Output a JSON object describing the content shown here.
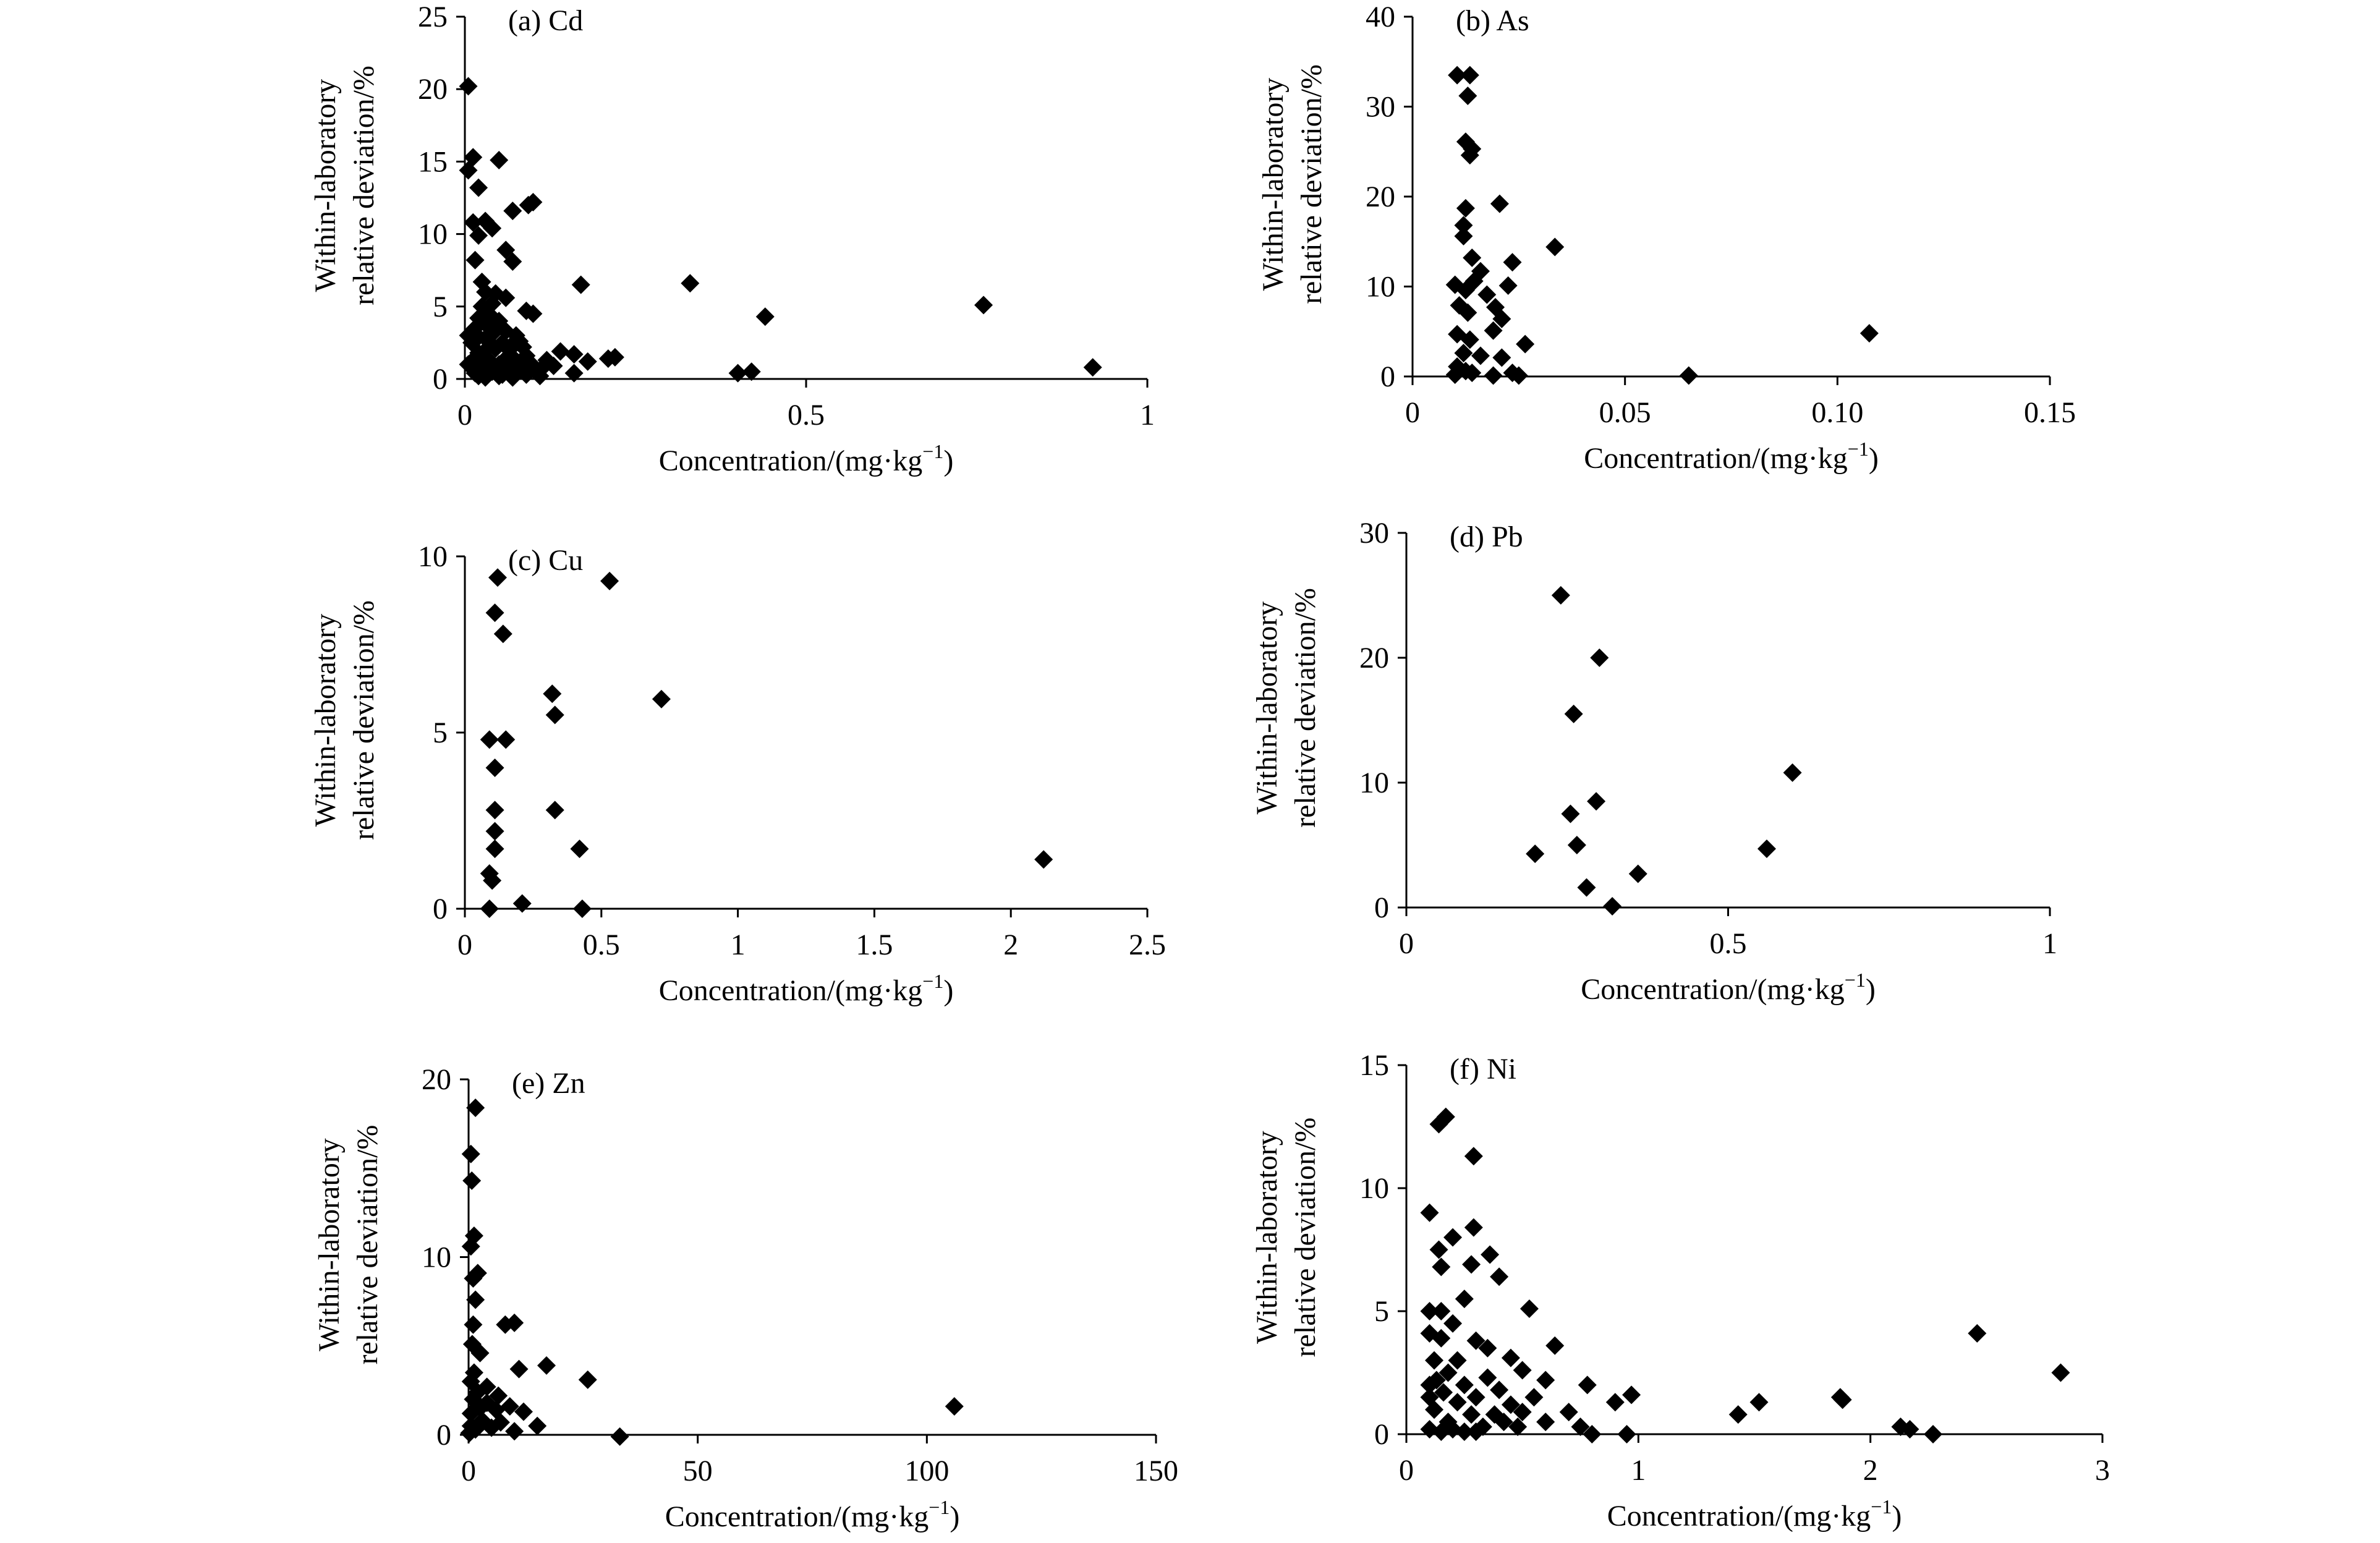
{
  "chart_data": [
    {
      "type": "scatter",
      "panel_label": "(a) Cd",
      "xlabel": "Concentration/(mg·kg",
      "xlabel_sup": "−1",
      "xlabel_close": ")",
      "ylabel_line1": "Within-laboratory",
      "ylabel_line2": "relative deviation/%",
      "xlim": [
        0,
        1
      ],
      "ylim": [
        0,
        25
      ],
      "xticks": [
        0,
        0.5,
        1
      ],
      "xtick_labels": [
        "0",
        "0.5",
        "1"
      ],
      "yticks": [
        0,
        5,
        10,
        15,
        20,
        25
      ],
      "ytick_labels": [
        "0",
        "5",
        "10",
        "15",
        "20",
        "25"
      ],
      "points": [
        [
          0.005,
          20.2
        ],
        [
          0.005,
          14.4
        ],
        [
          0.012,
          15.3
        ],
        [
          0.02,
          13.2
        ],
        [
          0.05,
          15.1
        ],
        [
          0.012,
          10.8
        ],
        [
          0.03,
          10.9
        ],
        [
          0.04,
          10.4
        ],
        [
          0.02,
          9.9
        ],
        [
          0.07,
          11.6
        ],
        [
          0.1,
          12.2
        ],
        [
          0.093,
          12.0
        ],
        [
          0.06,
          8.9
        ],
        [
          0.07,
          8.1
        ],
        [
          0.015,
          8.2
        ],
        [
          0.025,
          6.7
        ],
        [
          0.045,
          5.9
        ],
        [
          0.06,
          5.6
        ],
        [
          0.09,
          4.7
        ],
        [
          0.1,
          4.5
        ],
        [
          0.17,
          6.5
        ],
        [
          0.33,
          6.6
        ],
        [
          0.44,
          4.3
        ],
        [
          0.76,
          5.1
        ],
        [
          0.92,
          0.8
        ],
        [
          0.4,
          0.4
        ],
        [
          0.42,
          0.5
        ],
        [
          0.16,
          0.4
        ],
        [
          0.22,
          1.5
        ],
        [
          0.21,
          1.4
        ],
        [
          0.18,
          1.2
        ],
        [
          0.16,
          1.7
        ],
        [
          0.14,
          1.9
        ],
        [
          0.13,
          0.9
        ],
        [
          0.12,
          1.3
        ],
        [
          0.11,
          0.6
        ],
        [
          0.1,
          0.9
        ],
        [
          0.09,
          1.6
        ],
        [
          0.085,
          2.2
        ],
        [
          0.08,
          2.6
        ],
        [
          0.075,
          3.0
        ],
        [
          0.07,
          1.5
        ],
        [
          0.065,
          2.0
        ],
        [
          0.06,
          3.3
        ],
        [
          0.055,
          2.5
        ],
        [
          0.05,
          4.0
        ],
        [
          0.045,
          3.6
        ],
        [
          0.04,
          5.2
        ],
        [
          0.035,
          4.5
        ],
        [
          0.03,
          6.0
        ],
        [
          0.025,
          5.0
        ],
        [
          0.02,
          4.2
        ],
        [
          0.015,
          3.5
        ],
        [
          0.01,
          2.5
        ],
        [
          0.01,
          1.2
        ],
        [
          0.015,
          0.4
        ],
        [
          0.02,
          1.8
        ],
        [
          0.025,
          0.9
        ],
        [
          0.03,
          2.8
        ],
        [
          0.035,
          1.3
        ],
        [
          0.04,
          0.5
        ],
        [
          0.045,
          2.1
        ],
        [
          0.05,
          1.0
        ],
        [
          0.055,
          0.3
        ],
        [
          0.06,
          1.4
        ],
        [
          0.065,
          0.6
        ],
        [
          0.07,
          2.4
        ],
        [
          0.075,
          0.8
        ],
        [
          0.08,
          1.1
        ],
        [
          0.02,
          0.2
        ],
        [
          0.03,
          0.1
        ],
        [
          0.05,
          0.2
        ],
        [
          0.07,
          0.1
        ],
        [
          0.09,
          0.3
        ],
        [
          0.11,
          0.2
        ],
        [
          0.03,
          3.8
        ],
        [
          0.04,
          3.1
        ],
        [
          0.02,
          2.9
        ],
        [
          0.035,
          2.2
        ],
        [
          0.06,
          0.9
        ],
        [
          0.005,
          1.0
        ],
        [
          0.005,
          3.0
        ]
      ]
    },
    {
      "type": "scatter",
      "panel_label": "(b) As",
      "xlabel": "Concentration/(mg·kg",
      "xlabel_sup": "−1",
      "xlabel_close": ")",
      "ylabel_line1": "Within-laboratory",
      "ylabel_line2": "relative deviation/%",
      "xlim": [
        0,
        0.15
      ],
      "ylim": [
        0,
        40
      ],
      "xticks": [
        0,
        0.05,
        0.1,
        0.15
      ],
      "xtick_labels": [
        "0",
        "0.05",
        "0.10",
        "0.15"
      ],
      "yticks": [
        0,
        10,
        20,
        30,
        40
      ],
      "ytick_labels": [
        "0",
        "10",
        "20",
        "30",
        "40"
      ],
      "points": [
        [
          0.0105,
          33.5
        ],
        [
          0.0135,
          33.5
        ],
        [
          0.013,
          31.2
        ],
        [
          0.0125,
          26.1
        ],
        [
          0.014,
          25.3
        ],
        [
          0.0135,
          24.6
        ],
        [
          0.0125,
          18.7
        ],
        [
          0.0205,
          19.2
        ],
        [
          0.012,
          16.8
        ],
        [
          0.012,
          15.6
        ],
        [
          0.014,
          13.2
        ],
        [
          0.0335,
          14.4
        ],
        [
          0.016,
          11.7
        ],
        [
          0.0235,
          12.7
        ],
        [
          0.01,
          10.2
        ],
        [
          0.0125,
          9.6
        ],
        [
          0.0145,
          10.6
        ],
        [
          0.0175,
          9.1
        ],
        [
          0.0225,
          10.1
        ],
        [
          0.0195,
          7.7
        ],
        [
          0.021,
          6.4
        ],
        [
          0.011,
          7.9
        ],
        [
          0.013,
          7.1
        ],
        [
          0.019,
          5.1
        ],
        [
          0.0105,
          4.7
        ],
        [
          0.0135,
          4.1
        ],
        [
          0.0265,
          3.6
        ],
        [
          0.012,
          2.6
        ],
        [
          0.016,
          2.3
        ],
        [
          0.021,
          2.1
        ],
        [
          0.0105,
          1.1
        ],
        [
          0.0125,
          0.6
        ],
        [
          0.014,
          0.4
        ],
        [
          0.019,
          0.1
        ],
        [
          0.0235,
          0.4
        ],
        [
          0.025,
          0.1
        ],
        [
          0.01,
          0.2
        ],
        [
          0.065,
          0.1
        ],
        [
          0.1075,
          4.8
        ]
      ]
    },
    {
      "type": "scatter",
      "panel_label": "(c) Cu",
      "xlabel": "Concentration/(mg·kg",
      "xlabel_sup": "−1",
      "xlabel_close": ")",
      "ylabel_line1": "Within-laboratory",
      "ylabel_line2": "relative deviation/%",
      "xlim": [
        0,
        2.5
      ],
      "ylim": [
        0,
        10
      ],
      "xticks": [
        0,
        0.5,
        1,
        1.5,
        2,
        2.5
      ],
      "xtick_labels": [
        "0",
        "0.5",
        "1",
        "1.5",
        "2",
        "2.5"
      ],
      "yticks": [
        0,
        5,
        10
      ],
      "ytick_labels": [
        "0",
        "5",
        "10"
      ],
      "points": [
        [
          0.12,
          9.4
        ],
        [
          0.53,
          9.3
        ],
        [
          0.11,
          8.4
        ],
        [
          0.14,
          7.8
        ],
        [
          0.32,
          6.1
        ],
        [
          0.33,
          5.5
        ],
        [
          0.72,
          5.95
        ],
        [
          0.09,
          4.8
        ],
        [
          0.15,
          4.8
        ],
        [
          0.11,
          4.0
        ],
        [
          0.11,
          2.8
        ],
        [
          0.33,
          2.8
        ],
        [
          0.11,
          2.2
        ],
        [
          0.11,
          1.7
        ],
        [
          0.42,
          1.7
        ],
        [
          0.09,
          1.0
        ],
        [
          0.1,
          0.8
        ],
        [
          0.21,
          0.15
        ],
        [
          0.09,
          0.0
        ],
        [
          0.43,
          0.0
        ],
        [
          2.12,
          1.4
        ]
      ]
    },
    {
      "type": "scatter",
      "panel_label": "(d) Pb",
      "xlabel": "Concentration/(mg·kg",
      "xlabel_sup": "−1",
      "xlabel_close": ")",
      "ylabel_line1": "Within-laboratory",
      "ylabel_line2": "relative deviation/%",
      "xlim": [
        0,
        1
      ],
      "ylim": [
        0,
        30
      ],
      "xticks": [
        0,
        0.5,
        1
      ],
      "xtick_labels": [
        "0",
        "0.5",
        "1"
      ],
      "yticks": [
        0,
        10,
        20,
        30
      ],
      "ytick_labels": [
        "0",
        "10",
        "20",
        "30"
      ],
      "points": [
        [
          0.24,
          25.0
        ],
        [
          0.3,
          20.0
        ],
        [
          0.26,
          15.5
        ],
        [
          0.6,
          10.8
        ],
        [
          0.295,
          8.5
        ],
        [
          0.255,
          7.5
        ],
        [
          0.2,
          4.3
        ],
        [
          0.265,
          5.0
        ],
        [
          0.56,
          4.7
        ],
        [
          0.36,
          2.7
        ],
        [
          0.28,
          1.6
        ],
        [
          0.32,
          0.1
        ]
      ]
    },
    {
      "type": "scatter",
      "panel_label": "(e) Zn",
      "xlabel": "Concentration/(mg·kg",
      "xlabel_sup": "−1",
      "xlabel_close": ")",
      "ylabel_line1": "Within-laboratory",
      "ylabel_line2": "relative deviation/%",
      "xlim": [
        0,
        150
      ],
      "ylim": [
        0,
        20
      ],
      "xticks": [
        0,
        50,
        100,
        150
      ],
      "xtick_labels": [
        "0",
        "50",
        "100",
        "150"
      ],
      "yticks": [
        0,
        10,
        20
      ],
      "ytick_labels": [
        "0",
        "10",
        "20"
      ],
      "points": [
        [
          1.5,
          18.4
        ],
        [
          0.5,
          15.8
        ],
        [
          0.7,
          14.3
        ],
        [
          1.2,
          11.2
        ],
        [
          0.5,
          10.6
        ],
        [
          2.0,
          9.1
        ],
        [
          1.0,
          8.8
        ],
        [
          1.5,
          7.6
        ],
        [
          1.0,
          6.2
        ],
        [
          8.0,
          6.2
        ],
        [
          10.0,
          6.3
        ],
        [
          0.8,
          5.1
        ],
        [
          2.5,
          4.6
        ],
        [
          17.0,
          3.9
        ],
        [
          11.0,
          3.7
        ],
        [
          26.0,
          3.1
        ],
        [
          1.2,
          3.5
        ],
        [
          0.5,
          3.0
        ],
        [
          2.0,
          2.4
        ],
        [
          1.0,
          2.0
        ],
        [
          4.0,
          1.8
        ],
        [
          6.0,
          1.4
        ],
        [
          9.0,
          1.6
        ],
        [
          12.0,
          1.3
        ],
        [
          15.0,
          0.5
        ],
        [
          0.5,
          1.2
        ],
        [
          3.0,
          0.8
        ],
        [
          5.0,
          0.4
        ],
        [
          7.0,
          0.7
        ],
        [
          10.0,
          0.2
        ],
        [
          1.5,
          0.3
        ],
        [
          0.5,
          0.5
        ],
        [
          2.5,
          1.5
        ],
        [
          4.0,
          2.7
        ],
        [
          6.5,
          2.2
        ],
        [
          106.0,
          1.6
        ],
        [
          33.0,
          -0.1
        ],
        [
          0.2,
          0.1
        ]
      ]
    },
    {
      "type": "scatter",
      "panel_label": "(f) Ni",
      "xlabel": "Concentration/(mg·kg",
      "xlabel_sup": "−1",
      "xlabel_close": ")",
      "ylabel_line1": "Within-laboratory",
      "ylabel_line2": "relative deviation/%",
      "xlim": [
        0,
        3
      ],
      "ylim": [
        0,
        15
      ],
      "xticks": [
        0,
        1,
        2,
        3
      ],
      "xtick_labels": [
        "0",
        "1",
        "2",
        "3"
      ],
      "yticks": [
        0,
        5,
        10,
        15
      ],
      "ytick_labels": [
        "0",
        "5",
        "10",
        "15"
      ],
      "points": [
        [
          0.14,
          12.6
        ],
        [
          0.17,
          12.9
        ],
        [
          0.29,
          11.3
        ],
        [
          0.1,
          9.0
        ],
        [
          0.2,
          8.0
        ],
        [
          0.29,
          8.4
        ],
        [
          0.14,
          7.5
        ],
        [
          0.36,
          7.3
        ],
        [
          0.15,
          6.8
        ],
        [
          0.28,
          6.9
        ],
        [
          0.4,
          6.4
        ],
        [
          0.25,
          5.5
        ],
        [
          0.1,
          5.0
        ],
        [
          0.15,
          5.0
        ],
        [
          0.53,
          5.1
        ],
        [
          0.1,
          4.1
        ],
        [
          0.15,
          3.9
        ],
        [
          0.2,
          4.5
        ],
        [
          0.3,
          3.8
        ],
        [
          0.35,
          3.5
        ],
        [
          0.45,
          3.1
        ],
        [
          0.64,
          3.6
        ],
        [
          0.5,
          2.6
        ],
        [
          0.6,
          2.2
        ],
        [
          0.78,
          2.0
        ],
        [
          0.97,
          1.6
        ],
        [
          0.12,
          3.0
        ],
        [
          0.18,
          2.5
        ],
        [
          0.22,
          3.0
        ],
        [
          0.25,
          2.0
        ],
        [
          0.3,
          1.5
        ],
        [
          0.35,
          2.3
        ],
        [
          0.4,
          1.8
        ],
        [
          0.45,
          1.2
        ],
        [
          0.5,
          0.9
        ],
        [
          0.55,
          1.5
        ],
        [
          0.6,
          0.5
        ],
        [
          0.7,
          0.9
        ],
        [
          0.75,
          0.3
        ],
        [
          0.12,
          1.0
        ],
        [
          0.18,
          0.5
        ],
        [
          0.22,
          1.3
        ],
        [
          0.28,
          0.8
        ],
        [
          0.33,
          0.3
        ],
        [
          0.38,
          0.8
        ],
        [
          0.42,
          0.5
        ],
        [
          0.48,
          0.3
        ],
        [
          0.1,
          0.2
        ],
        [
          0.15,
          0.1
        ],
        [
          0.2,
          0.2
        ],
        [
          0.25,
          0.1
        ],
        [
          0.3,
          0.1
        ],
        [
          0.1,
          2.0
        ],
        [
          0.1,
          1.5
        ],
        [
          0.13,
          2.2
        ],
        [
          0.16,
          1.7
        ],
        [
          0.9,
          1.3
        ],
        [
          0.8,
          0.0
        ],
        [
          0.95,
          0.0
        ],
        [
          1.43,
          0.8
        ],
        [
          1.52,
          1.3
        ],
        [
          1.87,
          1.5
        ],
        [
          1.88,
          1.4
        ],
        [
          2.13,
          0.3
        ],
        [
          2.17,
          0.2
        ],
        [
          2.27,
          0.0
        ],
        [
          2.46,
          4.1
        ],
        [
          2.82,
          2.5
        ]
      ]
    }
  ]
}
